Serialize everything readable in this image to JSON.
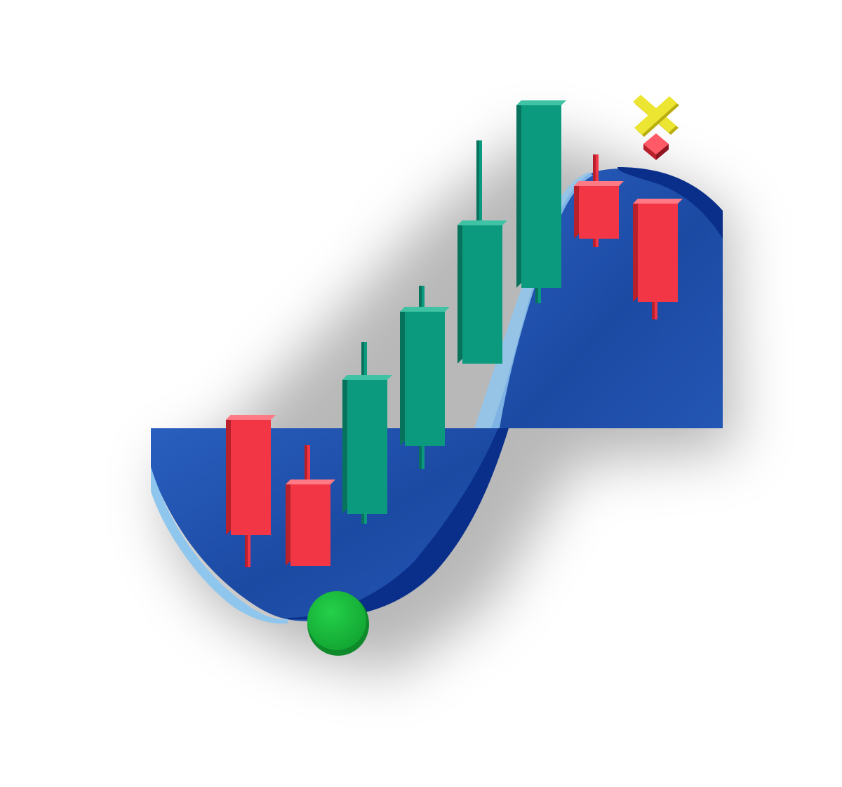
{
  "illustration": {
    "subject": "candlestick-trend-reversal",
    "colors": {
      "bullish": "#0c9a7e",
      "bullish_side": "#08735d",
      "bullish_top": "#3fc3a4",
      "bearish": "#f23645",
      "bearish_side": "#b8202c",
      "bearish_top": "#ff7a84",
      "wave_fill": "#1d4ea8",
      "wave_dark": "#0a2f8a",
      "wave_highlight": "#8fc6ee",
      "buy_signal": "#18b83a",
      "sell_signal": "#e8e030",
      "sell_diamond": "#d81f2e"
    },
    "candles": [
      {
        "direction": "bearish"
      },
      {
        "direction": "bearish"
      },
      {
        "direction": "bullish"
      },
      {
        "direction": "bullish"
      },
      {
        "direction": "bullish"
      },
      {
        "direction": "bullish"
      },
      {
        "direction": "bearish"
      },
      {
        "direction": "bearish"
      }
    ],
    "markers": {
      "buy_marker_icon": "green-circle",
      "sell_marker_icon": "yellow-x",
      "sell_diamond_icon": "red-diamond"
    }
  }
}
